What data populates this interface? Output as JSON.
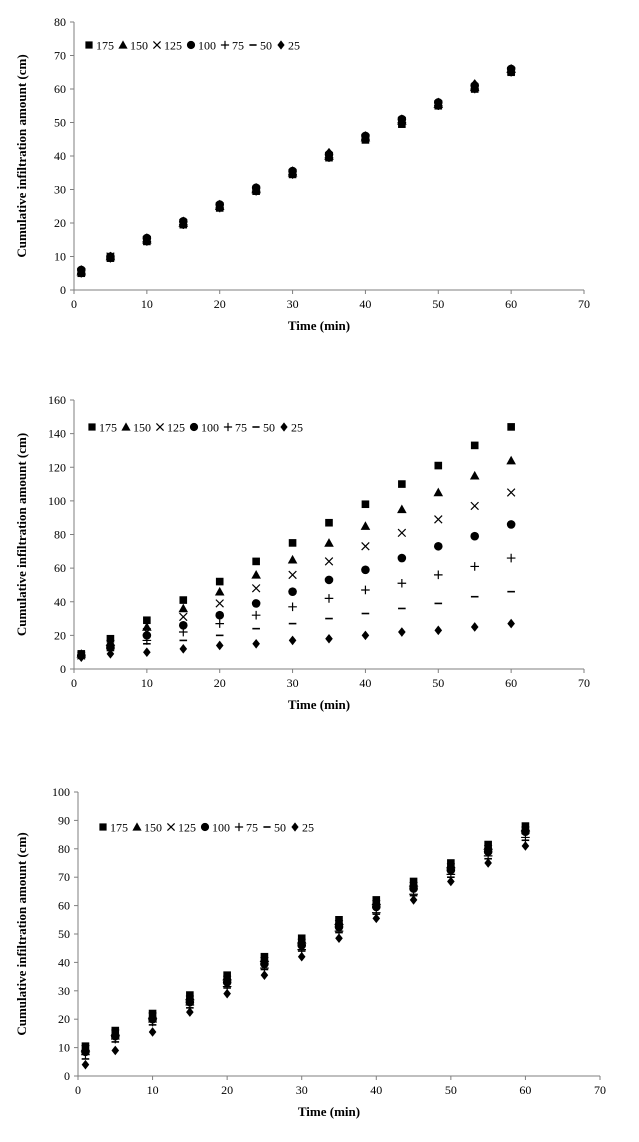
{
  "chart_data": [
    {
      "type": "scatter",
      "xlabel": "Time (min)",
      "ylabel": "Cumulative infiltration amount (cm)",
      "xlim": [
        0,
        70
      ],
      "ylim": [
        0,
        80
      ],
      "xticks": [
        "0",
        "10",
        "20",
        "30",
        "40",
        "50",
        "60",
        "70"
      ],
      "yticks": [
        "0",
        "10",
        "20",
        "30",
        "40",
        "50",
        "60",
        "70",
        "80"
      ],
      "grid": false,
      "legend_position": "top-left",
      "x": [
        1,
        5,
        10,
        15,
        20,
        25,
        30,
        35,
        40,
        45,
        50,
        55,
        60
      ],
      "series": [
        {
          "name": "175",
          "marker": "square",
          "values": [
            5,
            9.5,
            14.5,
            19.5,
            24.5,
            29.5,
            34.5,
            39.5,
            44.8,
            49.5,
            55,
            60,
            65
          ]
        },
        {
          "name": "150",
          "marker": "triangle",
          "values": [
            5.5,
            10,
            15,
            20,
            25,
            30,
            35,
            40,
            45.5,
            50.5,
            55.5,
            60.5,
            66
          ]
        },
        {
          "name": "125",
          "marker": "cross",
          "values": [
            5.5,
            10,
            15,
            20,
            25,
            30,
            35,
            40,
            45.5,
            50.5,
            55.5,
            60.5,
            65.5
          ]
        },
        {
          "name": "100",
          "marker": "circle",
          "values": [
            6,
            10,
            15.5,
            20.5,
            25.5,
            30.5,
            35.5,
            40.5,
            46,
            51,
            56,
            61,
            66
          ]
        },
        {
          "name": "75",
          "marker": "plus",
          "values": [
            5,
            9.5,
            14.5,
            19.5,
            24.5,
            29.5,
            34.5,
            39.5,
            45,
            50,
            55,
            60,
            65
          ]
        },
        {
          "name": "50",
          "marker": "dash",
          "values": [
            5,
            9.5,
            14.5,
            19.5,
            24.5,
            29.5,
            34.5,
            39.5,
            45,
            50,
            55,
            60,
            65
          ]
        },
        {
          "name": "25",
          "marker": "diamond",
          "values": [
            6,
            10,
            15.5,
            20.5,
            25.5,
            30.5,
            35.5,
            41,
            46,
            51,
            56,
            61.5,
            66
          ]
        }
      ]
    },
    {
      "type": "scatter",
      "xlabel": "Time (min)",
      "ylabel": "Cumulative infiltration amount (cm)",
      "xlim": [
        0,
        70
      ],
      "ylim": [
        0,
        160
      ],
      "xticks": [
        "0",
        "10",
        "20",
        "30",
        "40",
        "50",
        "60",
        "70"
      ],
      "yticks": [
        "0",
        "20",
        "40",
        "60",
        "80",
        "100",
        "120",
        "140",
        "160"
      ],
      "grid": false,
      "legend_position": "top-left",
      "x": [
        1,
        5,
        10,
        15,
        20,
        25,
        30,
        35,
        40,
        45,
        50,
        55,
        60
      ],
      "series": [
        {
          "name": "175",
          "marker": "square",
          "values": [
            9,
            18,
            29,
            41,
            52,
            64,
            75,
            87,
            98,
            110,
            121,
            133,
            144
          ]
        },
        {
          "name": "150",
          "marker": "triangle",
          "values": [
            9,
            16,
            25,
            36,
            46,
            56,
            65,
            75,
            85,
            95,
            105,
            115,
            124
          ]
        },
        {
          "name": "125",
          "marker": "cross",
          "values": [
            8,
            15,
            22,
            31,
            39,
            48,
            56,
            64,
            73,
            81,
            89,
            97,
            105
          ]
        },
        {
          "name": "100",
          "marker": "circle",
          "values": [
            8,
            13,
            20,
            26,
            32,
            39,
            46,
            53,
            59,
            66,
            73,
            79,
            86
          ]
        },
        {
          "name": "75",
          "marker": "plus",
          "values": [
            8,
            12,
            17,
            22,
            27,
            32,
            37,
            42,
            47,
            51,
            56,
            61,
            66
          ]
        },
        {
          "name": "50",
          "marker": "dash",
          "values": [
            8,
            11,
            15,
            17,
            20,
            24,
            27,
            30,
            33,
            36,
            39,
            43,
            46
          ]
        },
        {
          "name": "25",
          "marker": "diamond",
          "values": [
            7,
            9,
            10,
            12,
            14,
            15,
            17,
            18,
            20,
            22,
            23,
            25,
            27
          ]
        }
      ]
    },
    {
      "type": "scatter",
      "xlabel": "Time (min)",
      "ylabel": "Cumulative infiltration amount (cm)",
      "xlim": [
        0,
        70
      ],
      "ylim": [
        0,
        100
      ],
      "xticks": [
        "0",
        "10",
        "20",
        "30",
        "40",
        "50",
        "60",
        "70"
      ],
      "yticks": [
        "0",
        "10",
        "20",
        "30",
        "40",
        "50",
        "60",
        "70",
        "80",
        "90",
        "100"
      ],
      "grid": false,
      "legend_position": "top-left",
      "x": [
        1,
        5,
        10,
        15,
        20,
        25,
        30,
        35,
        40,
        45,
        50,
        55,
        60
      ],
      "series": [
        {
          "name": "175",
          "marker": "square",
          "values": [
            10.5,
            16,
            22,
            28.5,
            35.5,
            42,
            48.5,
            55,
            62,
            68.5,
            75,
            81.5,
            88
          ]
        },
        {
          "name": "150",
          "marker": "triangle",
          "values": [
            10,
            15.5,
            21.5,
            28,
            35,
            41.5,
            48,
            54.5,
            61.5,
            68,
            74.5,
            81,
            87.5
          ]
        },
        {
          "name": "125",
          "marker": "cross",
          "values": [
            9.5,
            15,
            21,
            27,
            34,
            40.5,
            47,
            53.5,
            60.5,
            67,
            73.5,
            80,
            86.5
          ]
        },
        {
          "name": "100",
          "marker": "circle",
          "values": [
            8.5,
            14,
            20,
            26,
            33,
            39.5,
            46,
            52.5,
            59.5,
            66,
            72.5,
            79,
            86
          ]
        },
        {
          "name": "75",
          "marker": "plus",
          "values": [
            7.5,
            13,
            19,
            25,
            31.5,
            38,
            44.5,
            51,
            57.5,
            64,
            71,
            77.5,
            84
          ]
        },
        {
          "name": "50",
          "marker": "dash",
          "values": [
            6,
            12,
            18,
            24,
            31,
            37.5,
            44,
            50.5,
            57,
            63.5,
            70,
            76.5,
            83
          ]
        },
        {
          "name": "25",
          "marker": "diamond",
          "values": [
            4,
            9,
            15.5,
            22.5,
            29,
            35.5,
            42,
            48.5,
            55.5,
            62,
            68.5,
            75,
            81
          ]
        }
      ]
    }
  ]
}
